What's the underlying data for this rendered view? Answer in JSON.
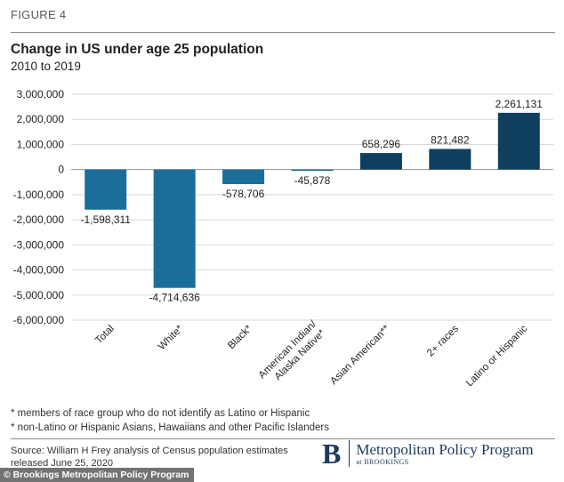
{
  "figure_label": "FIGURE 4",
  "title": "Change in US under age 25 population",
  "subtitle": "2010 to 2019",
  "chart_data": {
    "type": "bar",
    "title": "Change in US under age 25 population",
    "subtitle": "2010 to 2019",
    "categories": [
      "Total",
      "White*",
      "Black*",
      "American Indian/ Alaska Native*",
      "Asian American**",
      "2+ races",
      "Latino or Hispanic"
    ],
    "category_lines": [
      [
        "Total"
      ],
      [
        "White*"
      ],
      [
        "Black*"
      ],
      [
        "American Indian/",
        "Alaska Native*"
      ],
      [
        "Asian American**"
      ],
      [
        "2+ races"
      ],
      [
        "Latino or Hispanic"
      ]
    ],
    "values": [
      -1598311,
      -4714636,
      -578706,
      -45878,
      658296,
      821482,
      2261131
    ],
    "data_labels": [
      "-1,598,311",
      "-4,714,636",
      "-578,706",
      "-45,878",
      "658,296",
      "821,482",
      "2,261,131"
    ],
    "colors": [
      "#1b6e9a",
      "#1b6e9a",
      "#1b6e9a",
      "#1b6e9a",
      "#0e3f5e",
      "#0e3f5e",
      "#0e3f5e"
    ],
    "ylim": [
      -6000000,
      3000000
    ],
    "yticks": [
      3000000,
      2000000,
      1000000,
      0,
      -1000000,
      -2000000,
      -3000000,
      -4000000,
      -5000000,
      -6000000
    ],
    "ytick_labels": [
      "3,000,000",
      "2,000,000",
      "1,000,000",
      "0",
      "-1,000,000",
      "-2,000,000",
      "-3,000,000",
      "-4,000,000",
      "-5,000,000",
      "-6,000,000"
    ],
    "grid": true,
    "legend": "none"
  },
  "notes": [
    "* members of race group who do not identify as Latino or Hispanic",
    "* non-Latino or Hispanic Asians, Hawaiians and other Pacific Islanders"
  ],
  "source": "Source: William H Frey analysis of  Census population estimates released June 25, 2020",
  "logo": {
    "mark": "B",
    "name": "Metropolitan Policy Program",
    "sub": "at BROOKINGS"
  },
  "watermark": "© Brookings Metropolitan Policy Program"
}
